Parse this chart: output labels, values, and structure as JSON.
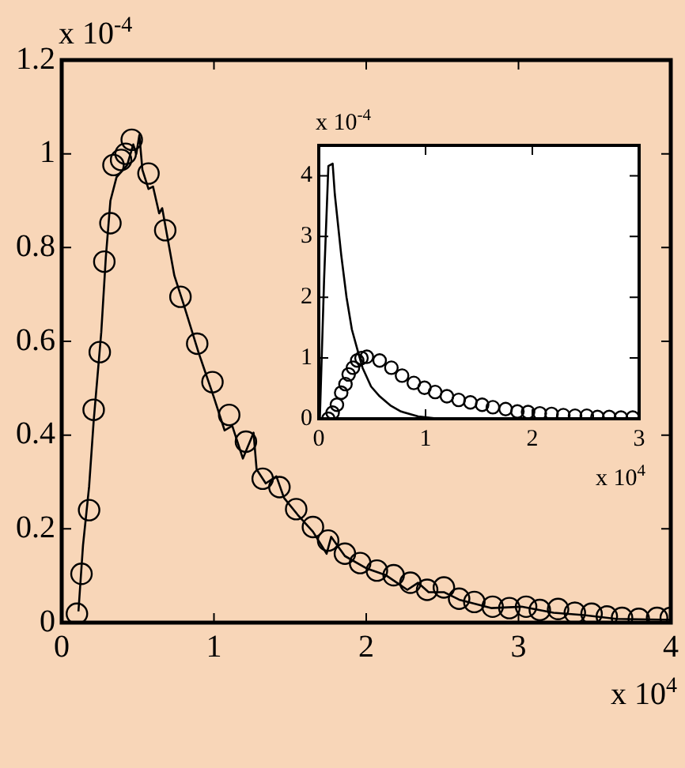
{
  "chart_data": [
    {
      "type": "line",
      "xlim": [
        0,
        4
      ],
      "xticks": [
        0,
        1,
        2,
        3,
        4
      ],
      "ylim": [
        0,
        1.2
      ],
      "yticks": [
        0,
        0.2,
        0.4,
        0.6,
        0.8,
        1,
        1.2
      ],
      "grid": false,
      "annotations": [
        "x 10$^{-4}$",
        "x 10$^{4}$"
      ],
      "series": [
        {
          "type": "line",
          "color": "#000000",
          "marker": "none",
          "line_style": "solid",
          "x": [
            0.11,
            0.14,
            0.18,
            0.21,
            0.26,
            0.29,
            0.32,
            0.36,
            0.43,
            0.47,
            0.49,
            0.51,
            0.53,
            0.57,
            0.6,
            0.64,
            0.66,
            0.74,
            0.8,
            0.9,
            1.0,
            1.07,
            1.12,
            1.19,
            1.26,
            1.28,
            1.34,
            1.41,
            1.46,
            1.55,
            1.65,
            1.74,
            1.77,
            1.86,
            2.0,
            2.13,
            2.27,
            2.34,
            2.41,
            2.51,
            2.61,
            2.82,
            3.02,
            3.23,
            3.43,
            3.64,
            4.0
          ],
          "values": [
            0.024,
            0.165,
            0.29,
            0.43,
            0.62,
            0.78,
            0.9,
            0.95,
            0.976,
            1.02,
            1.0,
            1.04,
            0.966,
            0.925,
            0.93,
            0.873,
            0.884,
            0.74,
            0.68,
            0.575,
            0.48,
            0.41,
            0.42,
            0.35,
            0.405,
            0.327,
            0.297,
            0.312,
            0.266,
            0.23,
            0.194,
            0.147,
            0.183,
            0.142,
            0.116,
            0.101,
            0.07,
            0.085,
            0.065,
            0.065,
            0.049,
            0.031,
            0.034,
            0.021,
            0.016,
            0.008,
            0.006
          ]
        },
        {
          "type": "scatter",
          "color": "#000000",
          "marker": "circle",
          "x": [
            0.1,
            0.13,
            0.18,
            0.21,
            0.25,
            0.28,
            0.32,
            0.34,
            0.39,
            0.42,
            0.46,
            0.57,
            0.68,
            0.78,
            0.89,
            0.99,
            1.1,
            1.21,
            1.32,
            1.43,
            1.54,
            1.65,
            1.75,
            1.86,
            1.96,
            2.07,
            2.18,
            2.29,
            2.4,
            2.51,
            2.61,
            2.71,
            2.83,
            2.94,
            3.05,
            3.14,
            3.26,
            3.37,
            3.48,
            3.58,
            3.68,
            3.79,
            3.91,
            4.0
          ],
          "values": [
            0.019,
            0.104,
            0.24,
            0.454,
            0.577,
            0.77,
            0.852,
            0.976,
            0.987,
            1.0,
            1.03,
            0.958,
            0.837,
            0.695,
            0.595,
            0.513,
            0.443,
            0.386,
            0.307,
            0.289,
            0.242,
            0.204,
            0.175,
            0.147,
            0.127,
            0.111,
            0.101,
            0.085,
            0.07,
            0.075,
            0.051,
            0.044,
            0.034,
            0.031,
            0.034,
            0.027,
            0.029,
            0.021,
            0.019,
            0.013,
            0.01,
            0.008,
            0.01,
            0.01
          ]
        }
      ]
    },
    {
      "type": "line",
      "xlim": [
        0,
        3
      ],
      "xticks": [
        0,
        1,
        2,
        3
      ],
      "ylim": [
        0,
        4.5
      ],
      "yticks": [
        0,
        1,
        2,
        3,
        4
      ],
      "grid": false,
      "annotations": [
        "x 10$^{-4}$",
        "x 10$^{4}$"
      ],
      "series": [
        {
          "type": "line",
          "color": "#000000",
          "marker": "none",
          "line_style": "solid",
          "x": [
            0.01,
            0.05,
            0.09,
            0.13,
            0.15,
            0.21,
            0.26,
            0.31,
            0.36,
            0.41,
            0.49,
            0.57,
            0.67,
            0.77,
            0.93,
            1.08,
            1.29,
            3.0
          ],
          "values": [
            0,
            2.3,
            4.16,
            4.2,
            3.7,
            2.7,
            2.0,
            1.47,
            1.15,
            0.84,
            0.53,
            0.37,
            0.22,
            0.12,
            0.04,
            0.01,
            0,
            0
          ]
        },
        {
          "type": "scatter",
          "color": "#000000",
          "marker": "circle",
          "x": [
            0.09,
            0.13,
            0.17,
            0.21,
            0.25,
            0.28,
            0.32,
            0.36,
            0.4,
            0.45,
            0.57,
            0.68,
            0.78,
            0.89,
            0.99,
            1.09,
            1.2,
            1.31,
            1.42,
            1.53,
            1.63,
            1.75,
            1.86,
            1.96,
            2.07,
            2.18,
            2.29,
            2.4,
            2.51,
            2.61,
            2.72,
            2.83,
            2.94
          ],
          "values": [
            0,
            0.1,
            0.23,
            0.43,
            0.57,
            0.73,
            0.84,
            0.96,
            1.0,
            1.02,
            0.96,
            0.84,
            0.71,
            0.59,
            0.51,
            0.44,
            0.37,
            0.31,
            0.27,
            0.23,
            0.19,
            0.16,
            0.12,
            0.11,
            0.09,
            0.08,
            0.06,
            0.05,
            0.05,
            0.03,
            0.03,
            0.02,
            0.02
          ]
        }
      ]
    }
  ]
}
